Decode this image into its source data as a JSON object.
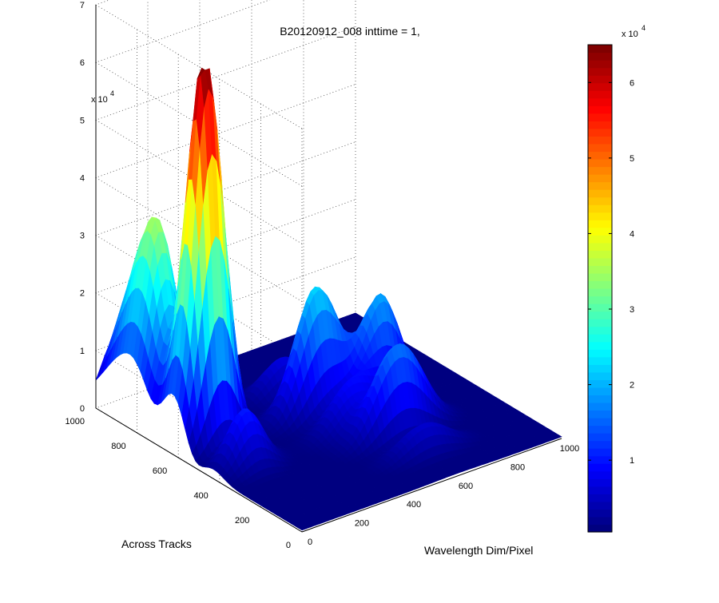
{
  "chart_data": {
    "type": "surface",
    "title": "B20120912_008 inttime = 1,",
    "xlabel": "Wavelength Dim/Pixel",
    "ylabel": "Across Tracks",
    "zlabel": "",
    "xlim": [
      0,
      1000
    ],
    "ylim": [
      0,
      1000
    ],
    "zlim": [
      0,
      70000
    ],
    "x_ticks": [
      "0",
      "200",
      "400",
      "600",
      "800",
      "1000"
    ],
    "y_ticks": [
      "0",
      "200",
      "400",
      "600",
      "800",
      "1000"
    ],
    "z_ticks": [
      "0",
      "1",
      "2",
      "3",
      "4",
      "5",
      "6",
      "7"
    ],
    "z_multiplier": "x 10",
    "z_multiplier_exponent": "4",
    "grid": true,
    "colormap": "jet",
    "colorbar": {
      "clim": [
        500,
        65000
      ],
      "ticks": [
        "1",
        "2",
        "3",
        "4",
        "5",
        "6"
      ],
      "multiplier": "x 10",
      "exponent": "4",
      "position": "right"
    },
    "peaks": [
      {
        "x": 120,
        "y": 620,
        "z": 65000
      },
      {
        "x": 80,
        "y": 850,
        "z": 28000
      },
      {
        "x": 500,
        "y": 560,
        "z": 22000
      },
      {
        "x": 700,
        "y": 500,
        "z": 18000
      },
      {
        "x": 600,
        "y": 300,
        "z": 15000
      }
    ]
  }
}
